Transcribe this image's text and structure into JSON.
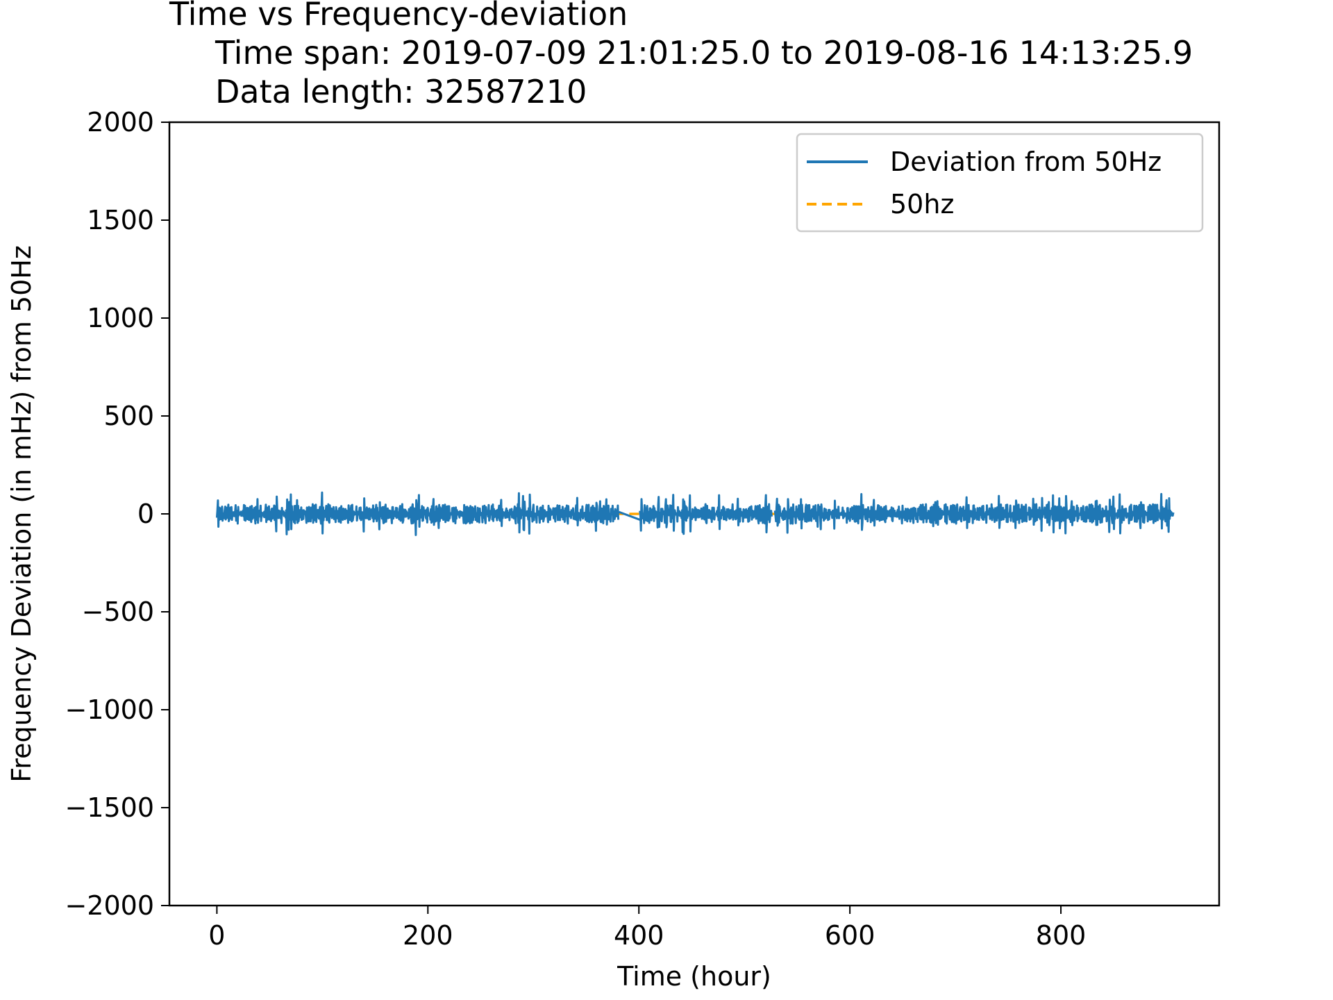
{
  "chart_data": {
    "type": "line",
    "title_lines": [
      "Time vs Frequency-deviation",
      "Time span: 2019-07-09 21:01:25.0 to 2019-08-16 14:13:25.9",
      "Data length: 32587210"
    ],
    "xlabel": "Time (hour)",
    "ylabel": "Frequency Deviation (in mHz) from 50Hz",
    "xlim": [
      -45,
      950
    ],
    "ylim": [
      -2000,
      2000
    ],
    "x_ticks": [
      0,
      200,
      400,
      600,
      800
    ],
    "x_tick_labels": [
      "0",
      "200",
      "400",
      "600",
      "800"
    ],
    "y_ticks": [
      -2000,
      -1500,
      -1000,
      -500,
      0,
      500,
      1000,
      1500,
      2000
    ],
    "y_tick_labels": [
      "−2000",
      "−1500",
      "−1000",
      "−500",
      "0",
      "500",
      "1000",
      "1500",
      "2000"
    ],
    "grid": false,
    "legend_position": "top-right",
    "series": [
      {
        "name": "Deviation from 50Hz",
        "style": "solid",
        "color": "#1f77b4",
        "segments": [
          {
            "x_start": 0,
            "x_end": 381
          },
          {
            "x_start": 401,
            "x_end": 526
          },
          {
            "x_start": 529,
            "x_end": 907
          }
        ],
        "typical_band": [
          -50,
          50
        ],
        "y_max": 110,
        "y_min": -125,
        "gap_bridges": [
          {
            "x": [
              381,
              401
            ],
            "y": [
              10,
              -30
            ]
          }
        ]
      },
      {
        "name": "50hz",
        "style": "dashed",
        "color": "#ffa500",
        "x": [
          0,
          907
        ],
        "y": [
          0,
          0
        ]
      }
    ]
  }
}
